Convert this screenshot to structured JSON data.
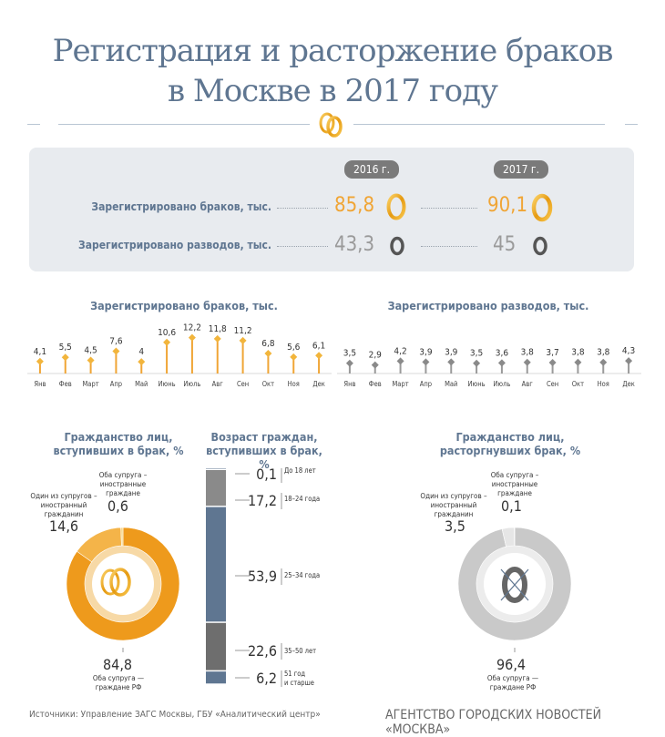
{
  "header": {
    "title_line1": "Регистрация и расторжение браков",
    "title_line2": "в Москве в 2017 году",
    "icon": "wedding-rings-icon"
  },
  "summary": {
    "years": [
      "2016 г.",
      "2017 г."
    ],
    "rows": [
      {
        "label": "Зарегистрировано браков, тыс.",
        "values": [
          "85,8",
          "90,1"
        ],
        "icon": "gold-ring-icon"
      },
      {
        "label": "Зарегистрировано разводов, тыс.",
        "values": [
          "43,3",
          "45"
        ],
        "icon": "gray-ring-icon"
      }
    ]
  },
  "colors": {
    "gold": "#f0a535",
    "gold_light": "#f6c36b",
    "blue": "#5f7691",
    "gray": "#c8c8c8",
    "dark_gray": "#6e6e6e",
    "panel": "#e8ebef"
  },
  "chart_data": [
    {
      "type": "bar",
      "title": "Зарегистрировано браков, тыс.",
      "categories": [
        "Янв",
        "Фев",
        "Март",
        "Апр",
        "Май",
        "Июнь",
        "Июль",
        "Авг",
        "Сен",
        "Окт",
        "Ноя",
        "Дек"
      ],
      "values": [
        4.1,
        5.5,
        4.5,
        7.6,
        4,
        10.6,
        12.2,
        11.8,
        11.2,
        6.8,
        5.6,
        6.1
      ],
      "labels": [
        "4,1",
        "5,5",
        "4,5",
        "7,6",
        "4",
        "10,6",
        "12,2",
        "11,8",
        "11,2",
        "6,8",
        "5,6",
        "6,1"
      ],
      "ylim": [
        0,
        13
      ]
    },
    {
      "type": "bar",
      "title": "Зарегистрировано разводов, тыс.",
      "categories": [
        "Янв",
        "Фев",
        "Март",
        "Апр",
        "Май",
        "Июнь",
        "Июль",
        "Авг",
        "Сен",
        "Окт",
        "Ноя",
        "Дек"
      ],
      "values": [
        3.5,
        2.9,
        4.2,
        3.9,
        3.9,
        3.5,
        3.6,
        3.8,
        3.7,
        3.8,
        3.8,
        4.3
      ],
      "labels": [
        "3,5",
        "2,9",
        "4,2",
        "3,9",
        "3,9",
        "3,5",
        "3,6",
        "3,8",
        "3,7",
        "3,8",
        "3,8",
        "4,3"
      ],
      "ylim": [
        0,
        13
      ]
    },
    {
      "type": "pie",
      "title": "Гражданство лиц, вступивших в брак, %",
      "slices": [
        {
          "name": "Оба супруга — граждане РФ",
          "value": 84.8,
          "label": "84,8"
        },
        {
          "name": "Один из супругов – иностранный гражданин",
          "value": 14.6,
          "label": "14,6"
        },
        {
          "name": "Оба супруга – иностранные граждане",
          "value": 0.6,
          "label": "0,6"
        }
      ]
    },
    {
      "type": "bar",
      "title": "Возраст граждан, вступивших в брак, %",
      "stacked": true,
      "categories": [
        "До 18 лет",
        "18–24 года",
        "25–34 года",
        "35–50 лет",
        "51 год и старше"
      ],
      "values": [
        0.1,
        17.2,
        53.9,
        22.6,
        6.2
      ],
      "labels": [
        "0,1",
        "17,2",
        "53,9",
        "22,6",
        "6,2"
      ]
    },
    {
      "type": "pie",
      "title": "Гражданство лиц, расторгнувших брак, %",
      "slices": [
        {
          "name": "Оба супруга — граждане РФ",
          "value": 96.4,
          "label": "96,4"
        },
        {
          "name": "Один из супругов – иностранный гражданин",
          "value": 3.5,
          "label": "3,5"
        },
        {
          "name": "Оба супруга – иностранные граждане",
          "value": 0.1,
          "label": "0,1"
        }
      ]
    }
  ],
  "age_ranges": {
    "r1": "До 18 лет",
    "r2": "18–24 года",
    "r3": "25–34 года",
    "r4": "35–50 лет",
    "r5a": "51 год",
    "r5b": "и старше"
  },
  "pie_labels": {
    "marriage": {
      "both_foreign_l1": "Оба супруга –",
      "both_foreign_l2": "иностранные",
      "both_foreign_l3": "граждане",
      "one_foreign_l1": "Один из супругов –",
      "one_foreign_l2": "иностранный",
      "one_foreign_l3": "гражданин",
      "both_rf_l1": "Оба супруга —",
      "both_rf_l2": "граждане РФ"
    },
    "divorce": {
      "both_foreign_l1": "Оба супруга –",
      "both_foreign_l2": "иностранные",
      "both_foreign_l3": "граждане",
      "one_foreign_l1": "Один из супругов –",
      "one_foreign_l2": "иностранный",
      "one_foreign_l3": "гражданин",
      "both_rf_l1": "Оба супруга —",
      "both_rf_l2": "граждане РФ"
    }
  },
  "pie_titles": {
    "marriage_l1": "Гражданство лиц,",
    "marriage_l2": "вступивших в брак, %",
    "age_l1": "Возраст граждан,",
    "age_l2": "вступивших в брак, %",
    "divorce_l1": "Гражданство лиц,",
    "divorce_l2": "расторгнувших брак, %"
  },
  "footer": {
    "sources": "Источники: Управление ЗАГС Москвы, ГБУ «Аналитический центр»",
    "agency": "АГЕНТСТВО ГОРОДСКИХ НОВОСТЕЙ «МОСКВА»"
  }
}
